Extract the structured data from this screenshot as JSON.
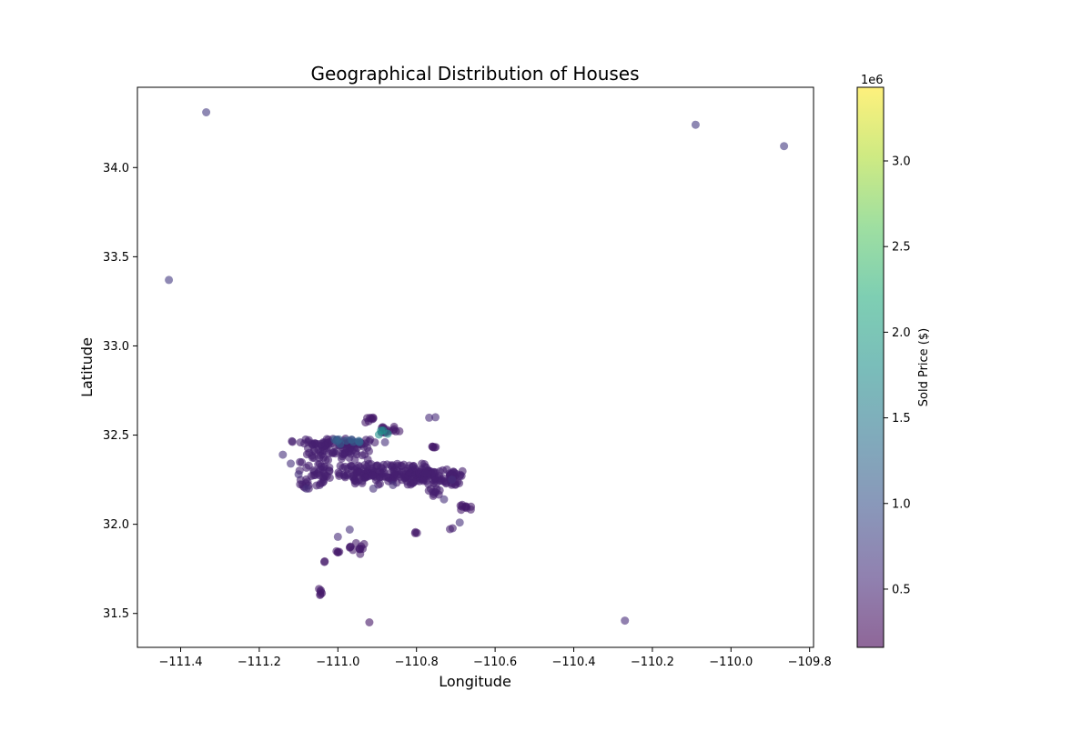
{
  "chart_data": {
    "type": "scatter",
    "title": "Geographical Distribution of Houses",
    "xlabel": "Longitude",
    "ylabel": "Latitude",
    "xlim": [
      -111.51,
      -109.79
    ],
    "ylim": [
      31.31,
      34.45
    ],
    "xticks": [
      -111.4,
      -111.2,
      -111.0,
      -110.8,
      -110.6,
      -110.4,
      -110.2,
      -110.0,
      -109.8
    ],
    "yticks": [
      31.5,
      32.0,
      32.5,
      33.0,
      33.5,
      34.0
    ],
    "grid": false,
    "colorbar": {
      "label": "Sold Price ($)",
      "multiplier_label": "1e6",
      "range": [
        0.16,
        3.43
      ],
      "ticks": [
        0.5,
        1.0,
        1.5,
        2.0,
        2.5,
        3.0
      ],
      "colormap": "viridis",
      "alpha": 0.6
    },
    "isolated_points": [
      {
        "x": -111.335,
        "y": 34.31,
        "price": 0.7
      },
      {
        "x": -111.43,
        "y": 33.37,
        "price": 0.7
      },
      {
        "x": -110.09,
        "y": 34.24,
        "price": 0.7
      },
      {
        "x": -109.865,
        "y": 34.12,
        "price": 0.7
      },
      {
        "x": -110.27,
        "y": 31.46,
        "price": 0.55
      },
      {
        "x": -110.92,
        "y": 31.45,
        "price": 0.35
      }
    ],
    "clusters": [
      {
        "xr": [
          -111.12,
          -110.9
        ],
        "yr": [
          32.44,
          32.48
        ],
        "n": 45,
        "price": 0.45
      },
      {
        "xr": [
          -111.08,
          -110.92
        ],
        "yr": [
          32.36,
          32.46
        ],
        "n": 80,
        "price": 0.45
      },
      {
        "xr": [
          -111.1,
          -111.02
        ],
        "yr": [
          32.2,
          32.35
        ],
        "n": 45,
        "price": 0.45
      },
      {
        "xr": [
          -111.0,
          -110.76
        ],
        "yr": [
          32.26,
          32.34
        ],
        "n": 120,
        "price": 0.45
      },
      {
        "xr": [
          -110.96,
          -110.68
        ],
        "yr": [
          32.22,
          32.3
        ],
        "n": 100,
        "price": 0.45
      },
      {
        "xr": [
          -110.8,
          -110.7
        ],
        "yr": [
          32.24,
          32.31
        ],
        "n": 40,
        "price": 0.45
      },
      {
        "xr": [
          -110.89,
          -110.84
        ],
        "yr": [
          32.51,
          32.55
        ],
        "n": 15,
        "price": 0.4
      },
      {
        "xr": [
          -110.93,
          -110.91
        ],
        "yr": [
          32.57,
          32.6
        ],
        "n": 8,
        "price": 0.4
      },
      {
        "xr": [
          -110.77,
          -110.75
        ],
        "yr": [
          32.43,
          32.45
        ],
        "n": 5,
        "price": 0.4
      },
      {
        "xr": [
          -110.77,
          -110.74
        ],
        "yr": [
          32.15,
          32.2
        ],
        "n": 10,
        "price": 0.45
      },
      {
        "xr": [
          -110.69,
          -110.66
        ],
        "yr": [
          32.08,
          32.11
        ],
        "n": 10,
        "price": 0.4
      },
      {
        "xr": [
          -110.97,
          -110.93
        ],
        "yr": [
          31.83,
          31.9
        ],
        "n": 12,
        "price": 0.4
      },
      {
        "xr": [
          -111.01,
          -110.99
        ],
        "yr": [
          31.84,
          31.85
        ],
        "n": 4,
        "price": 0.4
      },
      {
        "xr": [
          -111.05,
          -111.04
        ],
        "yr": [
          31.6,
          31.64
        ],
        "n": 6,
        "price": 0.4
      },
      {
        "xr": [
          -110.81,
          -110.79
        ],
        "yr": [
          31.94,
          31.96
        ],
        "n": 3,
        "price": 0.4
      },
      {
        "xr": [
          -111.05,
          -111.03
        ],
        "yr": [
          31.78,
          31.8
        ],
        "n": 2,
        "price": 0.4
      },
      {
        "xr": [
          -110.72,
          -110.7
        ],
        "yr": [
          31.97,
          31.98
        ],
        "n": 2,
        "price": 0.45
      },
      {
        "xr": [
          -110.77,
          -110.75
        ],
        "yr": [
          32.59,
          32.61
        ],
        "n": 2,
        "price": 0.55
      },
      {
        "xr": [
          -111.01,
          -110.94
        ],
        "yr": [
          32.45,
          32.48
        ],
        "n": 10,
        "price": 1.2
      },
      {
        "xr": [
          -110.9,
          -110.86
        ],
        "yr": [
          32.5,
          32.53
        ],
        "n": 4,
        "price": 1.8
      }
    ],
    "scattered_points": [
      {
        "x": -111.14,
        "y": 32.39,
        "price": 0.6
      },
      {
        "x": -111.12,
        "y": 32.34,
        "price": 0.6
      },
      {
        "x": -111.1,
        "y": 32.28,
        "price": 0.6
      },
      {
        "x": -111.08,
        "y": 32.2,
        "price": 0.6
      },
      {
        "x": -110.97,
        "y": 31.97,
        "price": 0.6
      },
      {
        "x": -111.0,
        "y": 31.93,
        "price": 0.55
      },
      {
        "x": -110.69,
        "y": 32.01,
        "price": 0.6
      },
      {
        "x": -110.71,
        "y": 32.25,
        "price": 0.6
      },
      {
        "x": -110.88,
        "y": 32.46,
        "price": 0.6
      },
      {
        "x": -110.91,
        "y": 32.2,
        "price": 0.6
      },
      {
        "x": -110.86,
        "y": 32.22,
        "price": 0.6
      },
      {
        "x": -110.73,
        "y": 32.14,
        "price": 0.6
      }
    ]
  }
}
